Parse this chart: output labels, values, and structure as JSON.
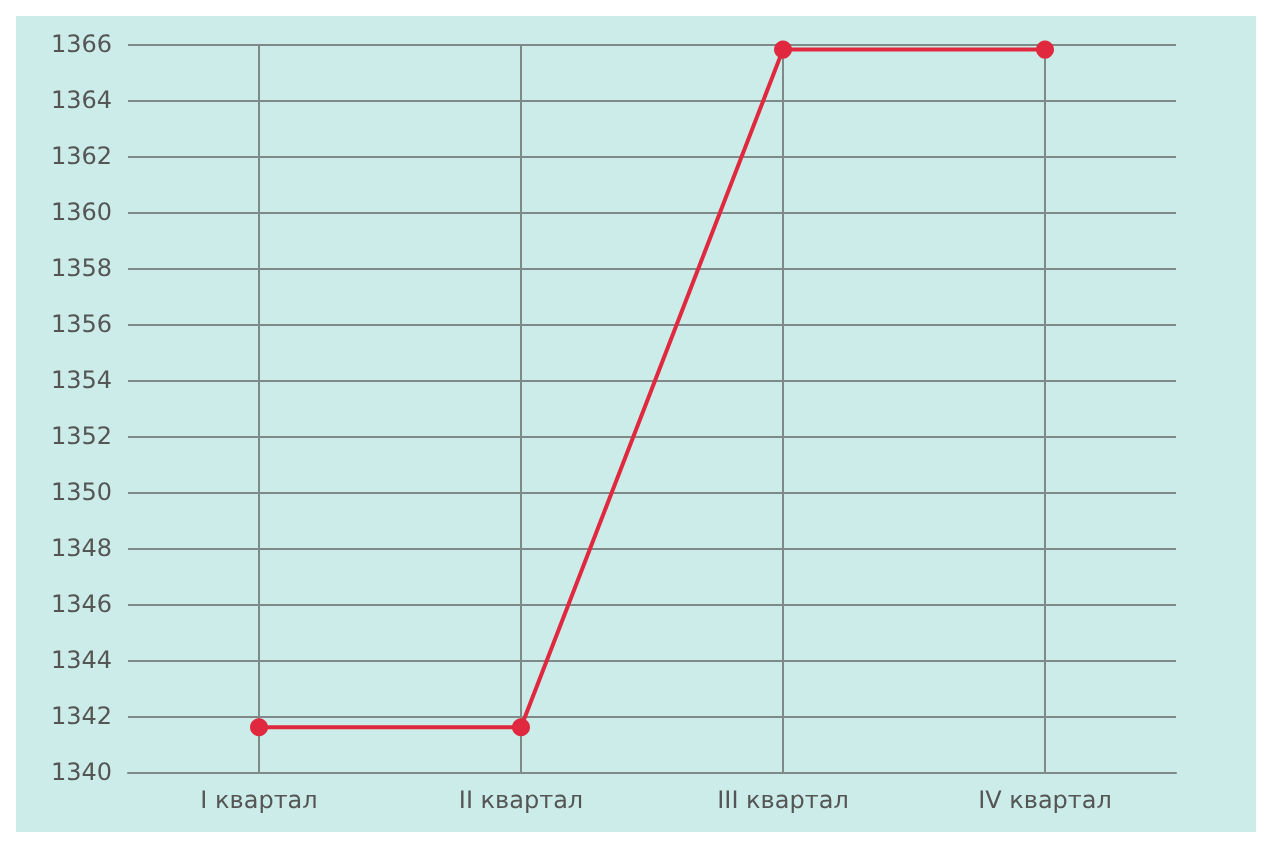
{
  "chart_data": {
    "type": "line",
    "categories": [
      "I квартал",
      "II квартал",
      "III квартал",
      "IV квартал"
    ],
    "series": [
      {
        "color": "#e0283e",
        "values": [
          1341.6,
          1341.6,
          1365.8,
          1365.8
        ]
      }
    ],
    "ylim": [
      1340,
      1366
    ],
    "yticks": [
      1340,
      1342,
      1344,
      1346,
      1348,
      1350,
      1352,
      1354,
      1356,
      1358,
      1360,
      1362,
      1364,
      1366
    ],
    "grid": true,
    "marker": "circle",
    "line_style": "solid"
  }
}
